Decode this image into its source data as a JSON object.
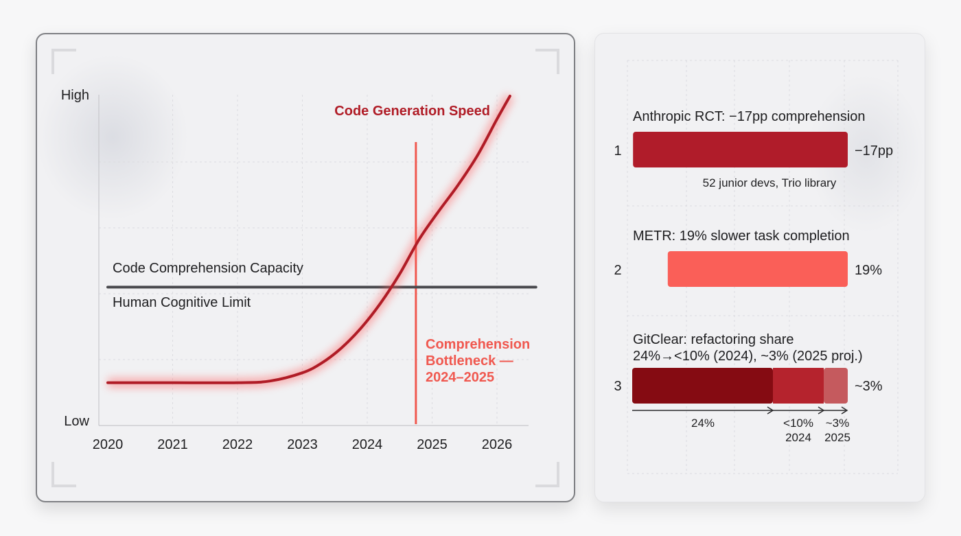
{
  "chart_data": [
    {
      "type": "line",
      "title": "",
      "xlabel": "",
      "ylabel": "",
      "x_ticks": [
        "2020",
        "2021",
        "2022",
        "2023",
        "2024",
        "2025",
        "2026"
      ],
      "xlim": [
        2020,
        2026.6
      ],
      "y_ticks": {
        "top": "High",
        "bottom": "Low"
      },
      "ylim": [
        0,
        100
      ],
      "grid": true,
      "series": [
        {
          "name": "Code Generation Speed",
          "color": "#b01c26",
          "glow_color": "#ff5a5a",
          "x": [
            2020,
            2021,
            2022,
            2022.5,
            2023,
            2023.3,
            2023.6,
            2023.9,
            2024.2,
            2024.5,
            2024.8,
            2025.1,
            2025.4,
            2025.7,
            2026.0,
            2026.2
          ],
          "y": [
            13,
            13,
            13,
            13.5,
            16,
            19,
            23.5,
            29.5,
            37,
            46,
            56.5,
            65,
            73,
            82,
            93,
            100
          ]
        },
        {
          "name": "",
          "color": "#4a4a4e",
          "x": [
            2020,
            2026.6
          ],
          "y": [
            42,
            42
          ]
        }
      ],
      "line_labels": {
        "above": "Code Comprehension Capacity",
        "below": "Human Cognitive Limit"
      },
      "marker_line": {
        "x": 2024.75,
        "color": "#f0584f",
        "label": [
          "Comprehension",
          "Bottleneck —",
          "2024–2025"
        ]
      }
    },
    {
      "type": "bar",
      "rows": [
        {
          "rank": "1",
          "title": "Anthropic RCT: −17pp comprehension",
          "value": 17,
          "value_label": "−17pp",
          "note": "52 junior devs, Trio library",
          "color": "#b01c2a"
        },
        {
          "rank": "2",
          "title": "METR: 19% slower task completion",
          "value": 19,
          "value_label": "19%",
          "color": "#fa5f58"
        },
        {
          "rank": "3",
          "title": [
            "GitClear: refactoring share",
            "24%→<10% (2024), ~3% (2025 proj.)"
          ],
          "value_label": "~3%",
          "segments": [
            {
              "label": "24%",
              "color": "#850b12"
            },
            {
              "label": "<10%",
              "sub": "2024",
              "color": "#b5232d"
            },
            {
              "label": "~3%",
              "sub": "2025",
              "color": "#c55a5e"
            }
          ]
        }
      ]
    }
  ]
}
